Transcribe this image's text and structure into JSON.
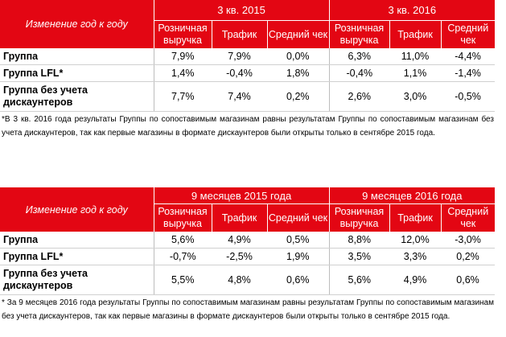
{
  "tables": [
    {
      "header_label": "Изменение год к году",
      "periods": [
        "3 кв. 2015",
        "3 кв. 2016"
      ],
      "columns": [
        "Розничная выручка",
        "Трафик",
        "Средний чек"
      ],
      "rows": [
        {
          "label": "Группа",
          "values": [
            "7,9%",
            "7,9%",
            "0,0%",
            "6,3%",
            "11,0%",
            "-4,4%"
          ]
        },
        {
          "label": "Группа LFL*",
          "values": [
            "1,4%",
            "-0,4%",
            "1,8%",
            "-0,4%",
            "1,1%",
            "-1,4%"
          ]
        },
        {
          "label": "Группа без учета дискаунтеров",
          "values": [
            "7,7%",
            "7,4%",
            "0,2%",
            "2,6%",
            "3,0%",
            "-0,5%"
          ]
        }
      ],
      "footnote": "*В 3 кв. 2016 года результаты Группы по сопоставимым магазинам равны результатам Группы по сопоставимым магазинам без учета дискаунтеров, так как первые магазины в формате дискаунтеров были открыты только в сентябре 2015 года."
    },
    {
      "header_label": "Изменение год к году",
      "periods": [
        "9 месяцев 2015 года",
        "9 месяцев 2016 года"
      ],
      "columns": [
        "Розничная выручка",
        "Трафик",
        "Средний чек"
      ],
      "rows": [
        {
          "label": "Группа",
          "values": [
            "5,6%",
            "4,9%",
            "0,5%",
            "8,8%",
            "12,0%",
            "-3,0%"
          ]
        },
        {
          "label": "Группа LFL*",
          "values": [
            "-0,7%",
            "-2,5%",
            "1,9%",
            "3,5%",
            "3,3%",
            "0,2%"
          ]
        },
        {
          "label": "Группа без учета дискаунтеров",
          "values": [
            "5,5%",
            "4,8%",
            "0,6%",
            "5,6%",
            "4,9%",
            "0,6%"
          ]
        }
      ],
      "footnote": "* За 9 месяцев 2016 года результаты Группы по сопоставимым магазинам равны результатам Группы по сопоставимым магазинам без учета дискаунтеров, так как первые магазины в формате дискаунтеров были открыты только в сентябре 2015 года."
    }
  ],
  "colors": {
    "header_bg": "#e30613",
    "header_text": "#ffffff"
  }
}
